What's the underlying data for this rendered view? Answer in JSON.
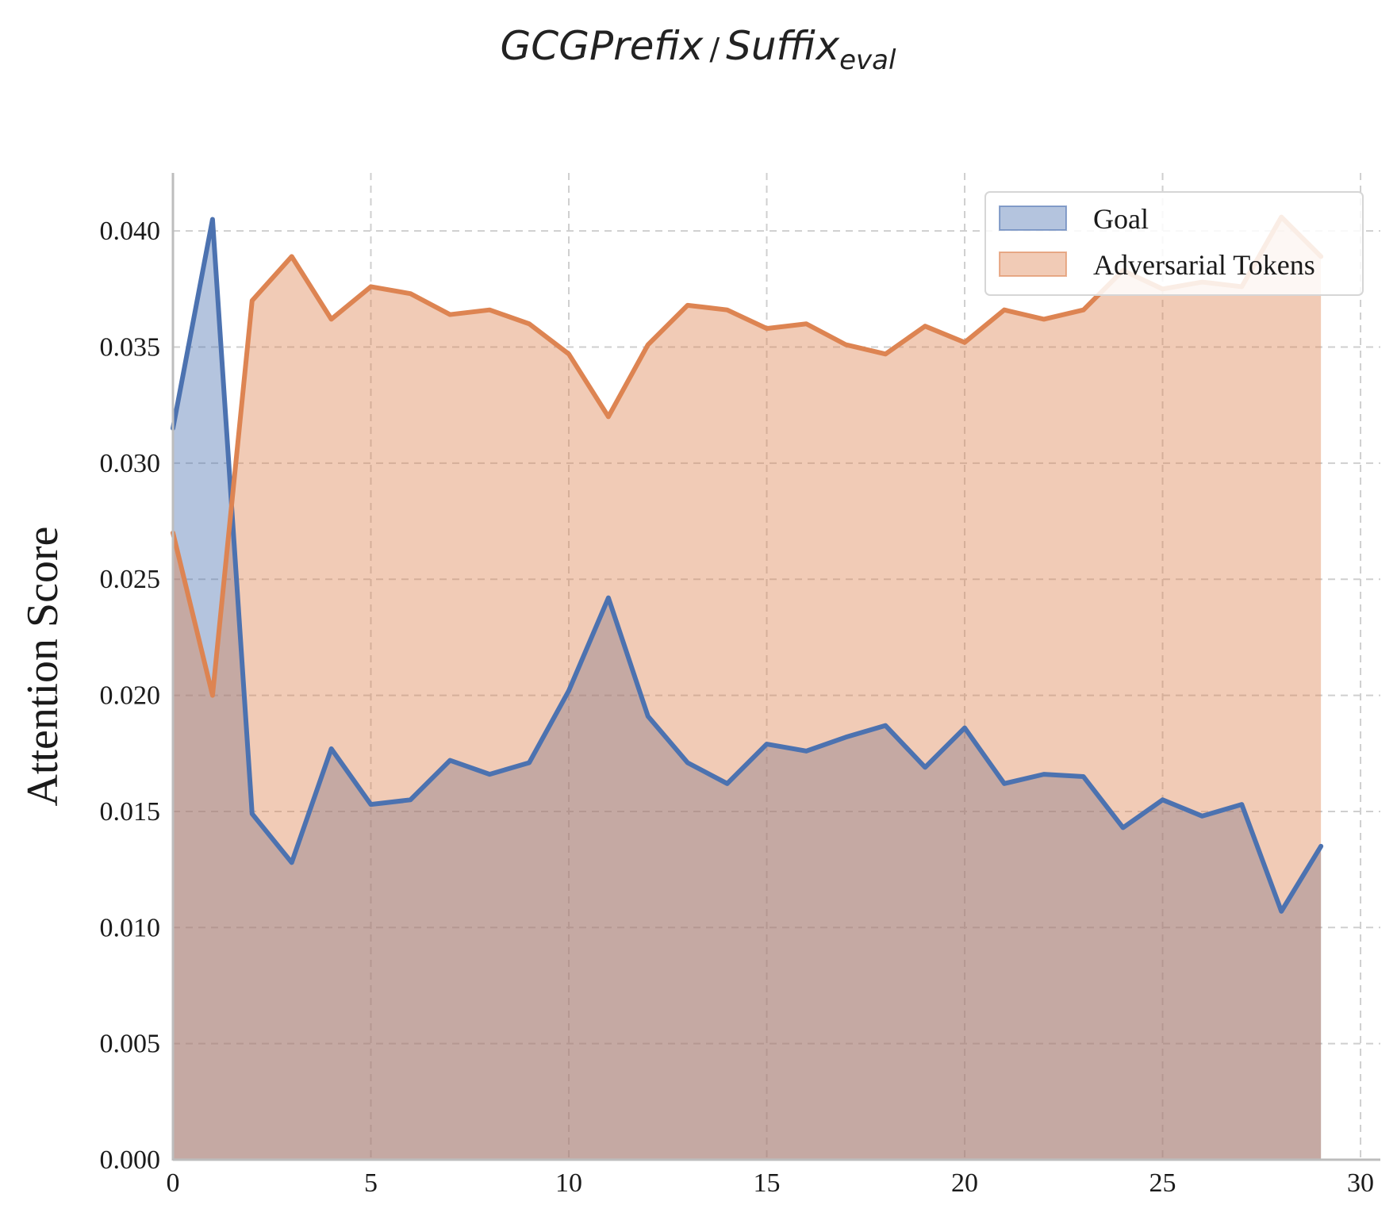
{
  "chart_data": {
    "type": "area",
    "title": {
      "main": "GCGPrefix",
      "separator": "/",
      "suffix": "Suffix",
      "subscript": "eval"
    },
    "xlabel": "",
    "ylabel": "Attention Score",
    "xlim": [
      0,
      30.5
    ],
    "ylim": [
      0,
      0.0425
    ],
    "xticks": [
      0,
      5,
      10,
      15,
      20,
      25,
      30
    ],
    "xtick_labels": [
      "0",
      "5",
      "10",
      "15",
      "20",
      "25",
      "30"
    ],
    "yticks": [
      0,
      0.005,
      0.01,
      0.015,
      0.02,
      0.025,
      0.03,
      0.035,
      0.04
    ],
    "ytick_labels": [
      "0.000",
      "0.005",
      "0.010",
      "0.015",
      "0.020",
      "0.025",
      "0.030",
      "0.035",
      "0.040"
    ],
    "grid": true,
    "legend_position": "top-right",
    "x": [
      0,
      1,
      2,
      3,
      4,
      5,
      6,
      7,
      8,
      9,
      10,
      11,
      12,
      13,
      14,
      15,
      16,
      17,
      18,
      19,
      20,
      21,
      22,
      23,
      24,
      25,
      26,
      27,
      28,
      29
    ],
    "series": [
      {
        "name": "Goal",
        "color": "#4c72b0",
        "fill": "#b4c5e0",
        "values": [
          0.0315,
          0.0405,
          0.0149,
          0.0128,
          0.0177,
          0.0153,
          0.0155,
          0.0172,
          0.0166,
          0.0171,
          0.0202,
          0.0242,
          0.0191,
          0.0171,
          0.0162,
          0.0179,
          0.0176,
          0.0182,
          0.0187,
          0.0169,
          0.0186,
          0.0162,
          0.0166,
          0.0165,
          0.0143,
          0.0155,
          0.0148,
          0.0153,
          0.0107,
          0.0135
        ]
      },
      {
        "name": "Adversarial Tokens",
        "color": "#dd8452",
        "fill": "#f1cbb8",
        "values": [
          0.027,
          0.02,
          0.037,
          0.0389,
          0.0362,
          0.0376,
          0.0373,
          0.0364,
          0.0366,
          0.036,
          0.0347,
          0.032,
          0.0351,
          0.0368,
          0.0366,
          0.0358,
          0.036,
          0.0351,
          0.0347,
          0.0359,
          0.0352,
          0.0366,
          0.0362,
          0.0366,
          0.0383,
          0.0375,
          0.0378,
          0.0376,
          0.0406,
          0.0389
        ]
      }
    ],
    "overlap_fill": "#c4a9a6"
  }
}
